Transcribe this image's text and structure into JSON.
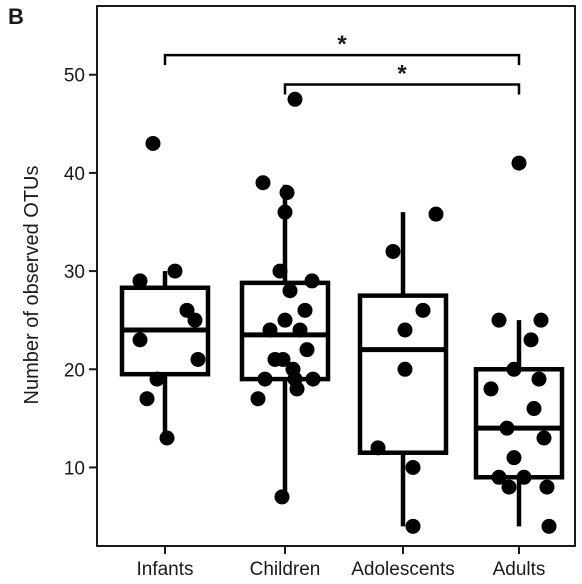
{
  "panel_label": "B",
  "chart_data": {
    "type": "box",
    "title": "",
    "xlabel": "",
    "ylabel": "Number of observed OTUs",
    "ylim": [
      2,
      57
    ],
    "yticks": [
      10,
      20,
      30,
      40,
      50
    ],
    "categories": [
      "Infants",
      "Children",
      "Adolescents",
      "Adults"
    ],
    "boxes": [
      {
        "category": "Infants",
        "min": 13,
        "q1": 19.5,
        "median": 24,
        "q3": 28.3,
        "max": 30
      },
      {
        "category": "Children",
        "min": 7,
        "q1": 19,
        "median": 23.5,
        "q3": 28.8,
        "max": 38.8
      },
      {
        "category": "Adolescents",
        "min": 4,
        "q1": 11.5,
        "median": 22,
        "q3": 27.5,
        "max": 36
      },
      {
        "category": "Adults",
        "min": 4,
        "q1": 9,
        "median": 14,
        "q3": 20,
        "max": 25
      }
    ],
    "points": [
      [
        {
          "x": -0.25,
          "y": 29
        },
        {
          "x": -0.18,
          "y": 17
        },
        {
          "x": -0.25,
          "y": 23
        },
        {
          "x": -0.08,
          "y": 19
        },
        {
          "x": 0.02,
          "y": 13
        },
        {
          "x": 0.1,
          "y": 30
        },
        {
          "x": 0.22,
          "y": 26
        },
        {
          "x": 0.3,
          "y": 25
        },
        {
          "x": 0.33,
          "y": 21
        },
        {
          "x": -0.12,
          "y": 43
        }
      ],
      [
        {
          "x": -0.27,
          "y": 17
        },
        {
          "x": -0.2,
          "y": 19
        },
        {
          "x": -0.15,
          "y": 24
        },
        {
          "x": -0.1,
          "y": 21
        },
        {
          "x": -0.05,
          "y": 30
        },
        {
          "x": -0.02,
          "y": 21
        },
        {
          "x": 0.0,
          "y": 25
        },
        {
          "x": 0.05,
          "y": 28
        },
        {
          "x": 0.08,
          "y": 20
        },
        {
          "x": 0.1,
          "y": 19
        },
        {
          "x": 0.12,
          "y": 18
        },
        {
          "x": 0.15,
          "y": 24
        },
        {
          "x": 0.2,
          "y": 26
        },
        {
          "x": 0.22,
          "y": 22
        },
        {
          "x": 0.27,
          "y": 29
        },
        {
          "x": 0.28,
          "y": 19
        },
        {
          "x": -0.22,
          "y": 39
        },
        {
          "x": 0.0,
          "y": 36
        },
        {
          "x": 0.02,
          "y": 38
        },
        {
          "x": 0.1,
          "y": 47.5
        },
        {
          "x": -0.03,
          "y": 7
        }
      ],
      [
        {
          "x": -0.25,
          "y": 12
        },
        {
          "x": -0.1,
          "y": 32
        },
        {
          "x": 0.02,
          "y": 24
        },
        {
          "x": 0.02,
          "y": 20
        },
        {
          "x": 0.2,
          "y": 26
        },
        {
          "x": 0.1,
          "y": 10
        },
        {
          "x": 0.1,
          "y": 4
        },
        {
          "x": 0.33,
          "y": 35.8
        }
      ],
      [
        {
          "x": -0.28,
          "y": 18
        },
        {
          "x": -0.2,
          "y": 9
        },
        {
          "x": -0.2,
          "y": 25
        },
        {
          "x": -0.12,
          "y": 14
        },
        {
          "x": -0.1,
          "y": 8
        },
        {
          "x": -0.05,
          "y": 20
        },
        {
          "x": -0.05,
          "y": 11
        },
        {
          "x": 0.0,
          "y": 41
        },
        {
          "x": 0.05,
          "y": 9
        },
        {
          "x": 0.12,
          "y": 23
        },
        {
          "x": 0.15,
          "y": 16
        },
        {
          "x": 0.2,
          "y": 19
        },
        {
          "x": 0.22,
          "y": 25
        },
        {
          "x": 0.25,
          "y": 13
        },
        {
          "x": 0.28,
          "y": 8
        },
        {
          "x": 0.3,
          "y": 4
        }
      ]
    ],
    "significance": [
      {
        "from": "Infants",
        "to": "Adults",
        "label": "*",
        "y": 52
      },
      {
        "from": "Children",
        "to": "Adults",
        "label": "*",
        "y": 49
      }
    ],
    "grid": false,
    "legend": "none"
  }
}
